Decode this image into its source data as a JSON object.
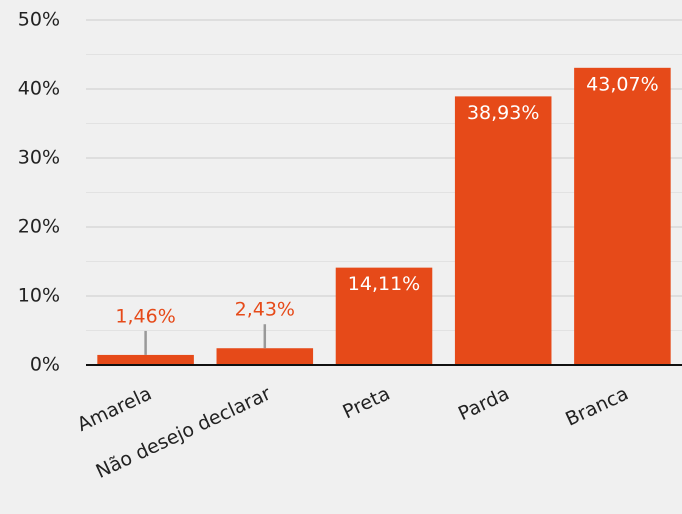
{
  "chart_data": {
    "type": "bar",
    "categories": [
      "Amarela",
      "Não desejo declarar",
      "Preta",
      "Parda",
      "Branca"
    ],
    "values": [
      1.46,
      2.43,
      14.11,
      38.93,
      43.07
    ],
    "value_labels": [
      "1,46%",
      "2,43%",
      "14,11%",
      "38,93%",
      "43,07%"
    ],
    "color": "#e64a19",
    "ylim": [
      0,
      50
    ],
    "yticks": [
      {
        "value": 0,
        "label": "0%"
      },
      {
        "value": 10,
        "label": "10%"
      },
      {
        "value": 20,
        "label": "20%"
      },
      {
        "value": 30,
        "label": "30%"
      },
      {
        "value": 40,
        "label": "40%"
      },
      {
        "value": 50,
        "label": "50%"
      }
    ],
    "minor_yticks": [
      5,
      15,
      25,
      35,
      45
    ],
    "grid": true
  }
}
